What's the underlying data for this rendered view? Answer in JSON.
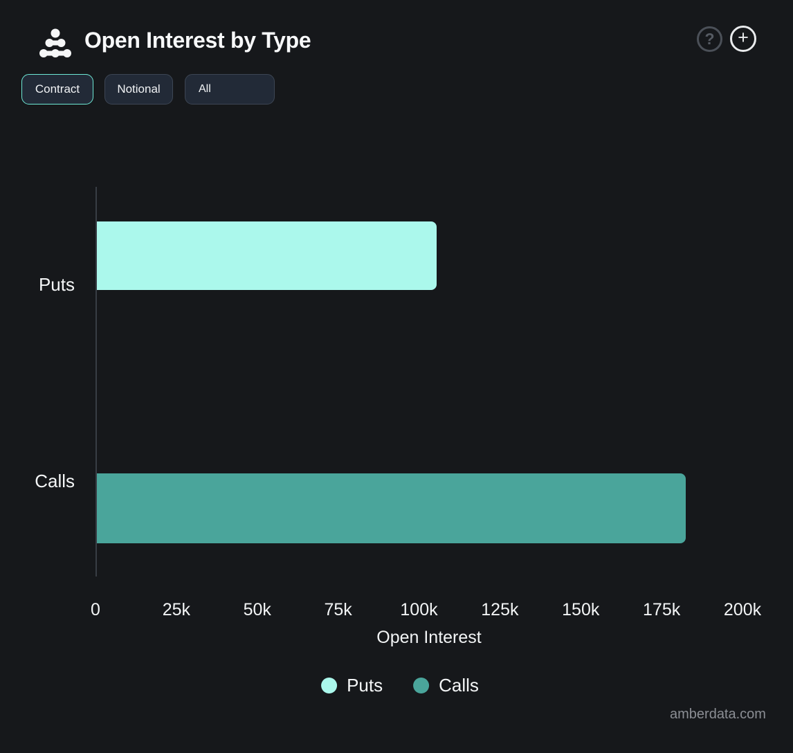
{
  "header": {
    "title": "Open Interest by Type",
    "help_label": "?",
    "add_label": "+"
  },
  "toolbar": {
    "contract_label": "Contract",
    "notional_label": "Notional",
    "all_label": "All"
  },
  "chart_data": {
    "type": "bar",
    "orientation": "horizontal",
    "title": "Open Interest by Type",
    "categories": [
      "Puts",
      "Calls"
    ],
    "values": [
      105000,
      182000
    ],
    "colors": [
      "#abf8ec",
      "#4aa59b"
    ],
    "xlabel": "Open Interest",
    "ylabel": "",
    "xlim": [
      0,
      200000
    ],
    "x_tick_labels": [
      "0",
      "25k",
      "50k",
      "75k",
      "100k",
      "125k",
      "150k",
      "175k",
      "200k"
    ],
    "legend": [
      "Puts",
      "Calls"
    ],
    "legend_position": "bottom",
    "grid": false
  },
  "footer": {
    "watermark": "amberdata.com"
  }
}
